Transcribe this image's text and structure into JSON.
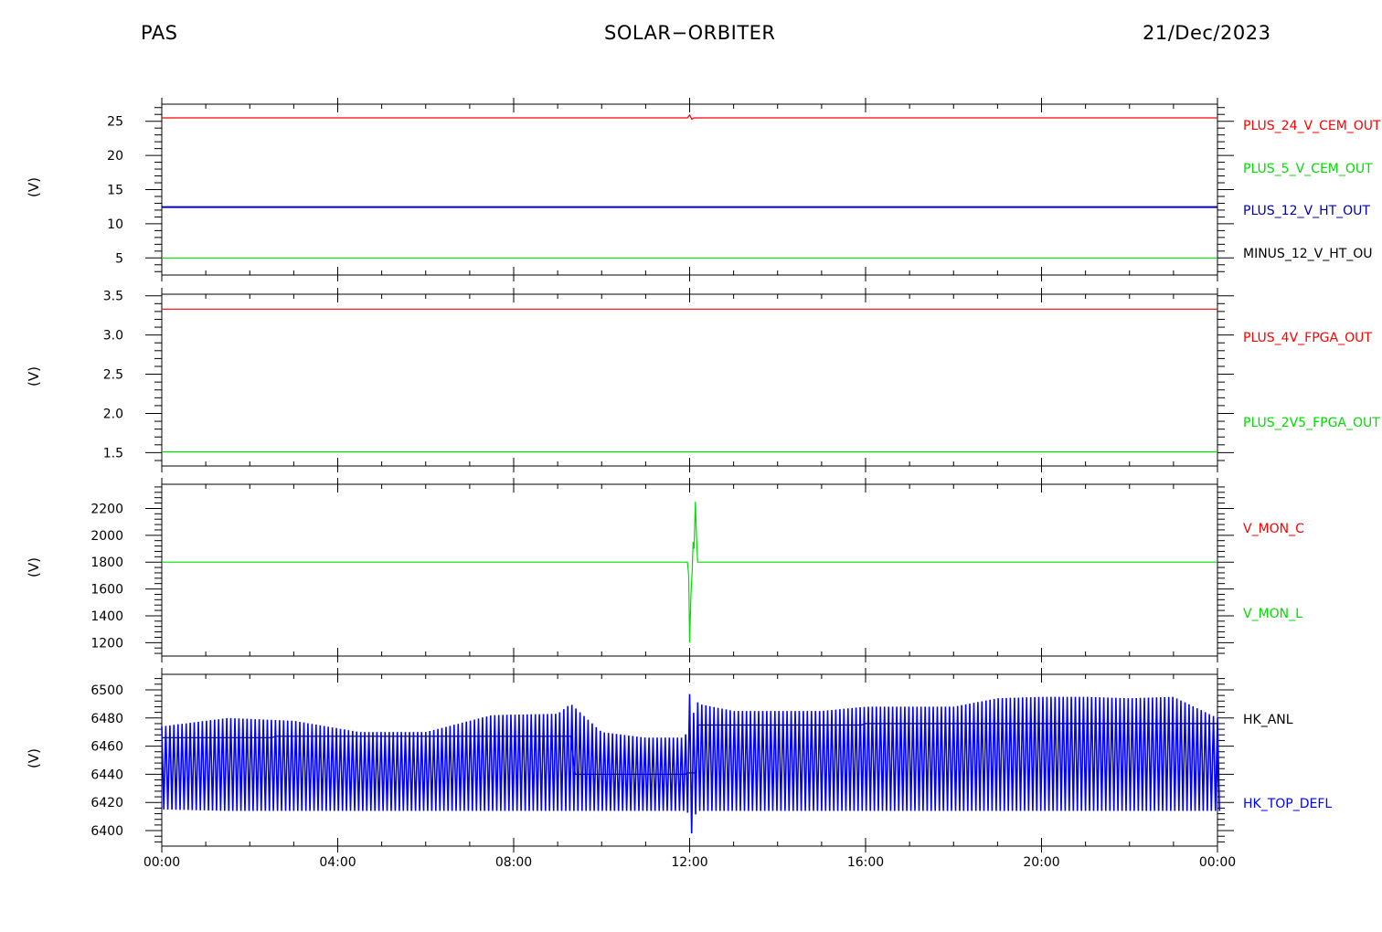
{
  "header": {
    "instrument": "PAS",
    "mission": "SOLAR−ORBITER",
    "date": "21/Dec/2023"
  },
  "chart_data": [
    {
      "type": "line",
      "ylabel": "(V)",
      "ylim": [
        2.5,
        27.5
      ],
      "yticks": [
        5,
        10,
        15,
        20,
        25
      ],
      "xlim": [
        0,
        24
      ],
      "series": [
        {
          "name": "PLUS_24_V_CEM_OUT",
          "color": "#ff0000",
          "x": [
            0,
            6,
            11.95,
            12.0,
            12.05,
            12.1,
            18,
            24
          ],
          "values": [
            25.5,
            25.5,
            25.5,
            25.9,
            25.3,
            25.5,
            25.5,
            25.5
          ]
        },
        {
          "name": "PLUS_5_V_CEM_OUT",
          "color": "#00dd00",
          "x": [
            0,
            24
          ],
          "values": [
            5.0,
            5.0
          ]
        },
        {
          "name": "PLUS_12_V_HT_OUT",
          "color": "#0000b0",
          "x": [
            0,
            24
          ],
          "values": [
            12.45,
            12.45
          ]
        },
        {
          "name": "MINUS_12_V_HT_OU",
          "color": "#000000",
          "x": [],
          "values": []
        }
      ]
    },
    {
      "type": "line",
      "ylabel": "(V)",
      "ylim": [
        1.33,
        3.52
      ],
      "yticks": [
        1.5,
        2.0,
        2.5,
        3.0,
        3.5
      ],
      "ytick_labels": [
        "1.5",
        "2.0",
        "2.5",
        "3.0",
        "3.5"
      ],
      "xlim": [
        0,
        24
      ],
      "series": [
        {
          "name": "PLUS_4V_FPGA_OUT",
          "color": "#ff0000",
          "x": [
            0,
            24
          ],
          "values": [
            3.33,
            3.33
          ]
        },
        {
          "name": "PLUS_2V5_FPGA_OUT",
          "color": "#00dd00",
          "x": [
            0,
            24
          ],
          "values": [
            1.51,
            1.51
          ]
        }
      ]
    },
    {
      "type": "line",
      "ylabel": "(V)",
      "ylim": [
        1100,
        2380
      ],
      "yticks": [
        1200,
        1400,
        1600,
        1800,
        2000,
        2200
      ],
      "xlim": [
        0,
        24
      ],
      "series": [
        {
          "name": "V_MON_C",
          "color": "#ff0000",
          "x": [],
          "values": []
        },
        {
          "name": "V_MON_L",
          "color": "#00dd00",
          "x": [
            0,
            11.95,
            11.98,
            12.0,
            12.03,
            12.06,
            12.08,
            12.1,
            12.13,
            12.15,
            12.18,
            24
          ],
          "values": [
            1800,
            1800,
            1700,
            1200,
            1550,
            1750,
            1950,
            1900,
            2250,
            2050,
            1800,
            1800
          ]
        }
      ]
    },
    {
      "type": "line",
      "ylabel": "(V)",
      "ylim": [
        6389,
        6511
      ],
      "yticks": [
        6400,
        6420,
        6440,
        6460,
        6480,
        6500
      ],
      "xlim": [
        0,
        24
      ],
      "series": [
        {
          "name": "HK_ANL",
          "color": "#000000",
          "x": [
            0,
            2.5,
            2.6,
            4,
            9.3,
            9.4,
            11.9,
            11.95,
            12.15,
            12.2,
            15.9,
            16,
            20,
            24
          ],
          "values": [
            6466,
            6466,
            6467,
            6467,
            6467,
            6440,
            6440,
            6441,
            6441,
            6475,
            6475,
            6476,
            6476,
            6476
          ]
        },
        {
          "name": "HK_TOP_DEFL",
          "color": "#0000ff",
          "x": [
            0,
            1.5,
            3,
            4.5,
            6,
            7.5,
            9,
            9.3,
            10,
            11,
            11.9,
            12.0,
            12.05,
            12.1,
            12.2,
            13,
            14,
            15,
            16,
            17,
            18,
            19,
            20,
            21,
            22,
            23,
            24
          ],
          "upper": [
            6474,
            6480,
            6478,
            6470,
            6470,
            6482,
            6483,
            6490,
            6470,
            6466,
            6466,
            6497,
            6410,
            6497,
            6490,
            6485,
            6485,
            6485,
            6488,
            6488,
            6488,
            6494,
            6495,
            6495,
            6494,
            6495,
            6480
          ],
          "lower": [
            6415,
            6414,
            6414,
            6414,
            6414,
            6414,
            6414,
            6414,
            6414,
            6414,
            6414,
            6398,
            6398,
            6414,
            6414,
            6414,
            6414,
            6414,
            6414,
            6414,
            6414,
            6414,
            6414,
            6414,
            6414,
            6414,
            6414
          ]
        }
      ]
    }
  ],
  "x_axis": {
    "range": [
      "00:00",
      "00:00"
    ],
    "tick_labels": [
      "00:00",
      "04:00",
      "08:00",
      "12:00",
      "16:00",
      "20:00",
      "00:00"
    ]
  }
}
